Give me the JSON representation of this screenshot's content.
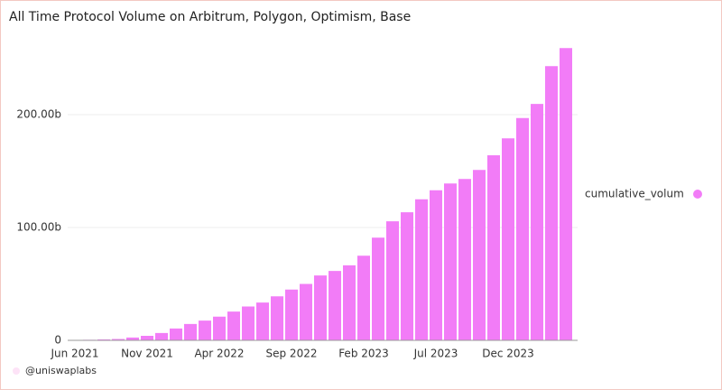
{
  "chart_data": {
    "type": "bar",
    "title": "All Time Protocol Volume on Arbitrum, Polygon, Optimism, Base",
    "categories": [
      "Jun 2021",
      null,
      null,
      null,
      null,
      "Nov 2021",
      null,
      null,
      null,
      null,
      "Apr 2022",
      null,
      null,
      null,
      null,
      "Sep 2022",
      null,
      null,
      null,
      null,
      "Feb 2023",
      null,
      null,
      null,
      null,
      "Jul 2023",
      null,
      null,
      null,
      null,
      "Dec 2023",
      null,
      null,
      null,
      null
    ],
    "series": [
      {
        "name": "cumulative_volum",
        "color": "#f27cf7",
        "values": [
          0.3,
          0.5,
          0.8,
          1.2,
          2.5,
          4,
          6.5,
          10.5,
          14.5,
          17.5,
          21,
          25.5,
          30,
          33.5,
          39,
          45,
          50,
          57.5,
          61.5,
          66.5,
          75,
          91,
          105.5,
          113.5,
          125,
          133,
          139,
          143,
          151,
          164,
          179,
          197,
          209.5,
          243,
          259
        ]
      }
    ],
    "ylim": [
      0,
      270
    ],
    "yticks": [
      0,
      {
        "value": 100,
        "label": "100.00b"
      },
      {
        "value": 200,
        "label": "200.00b"
      }
    ],
    "grid": true,
    "legend": "right",
    "footer": "@uniswaplabs"
  }
}
